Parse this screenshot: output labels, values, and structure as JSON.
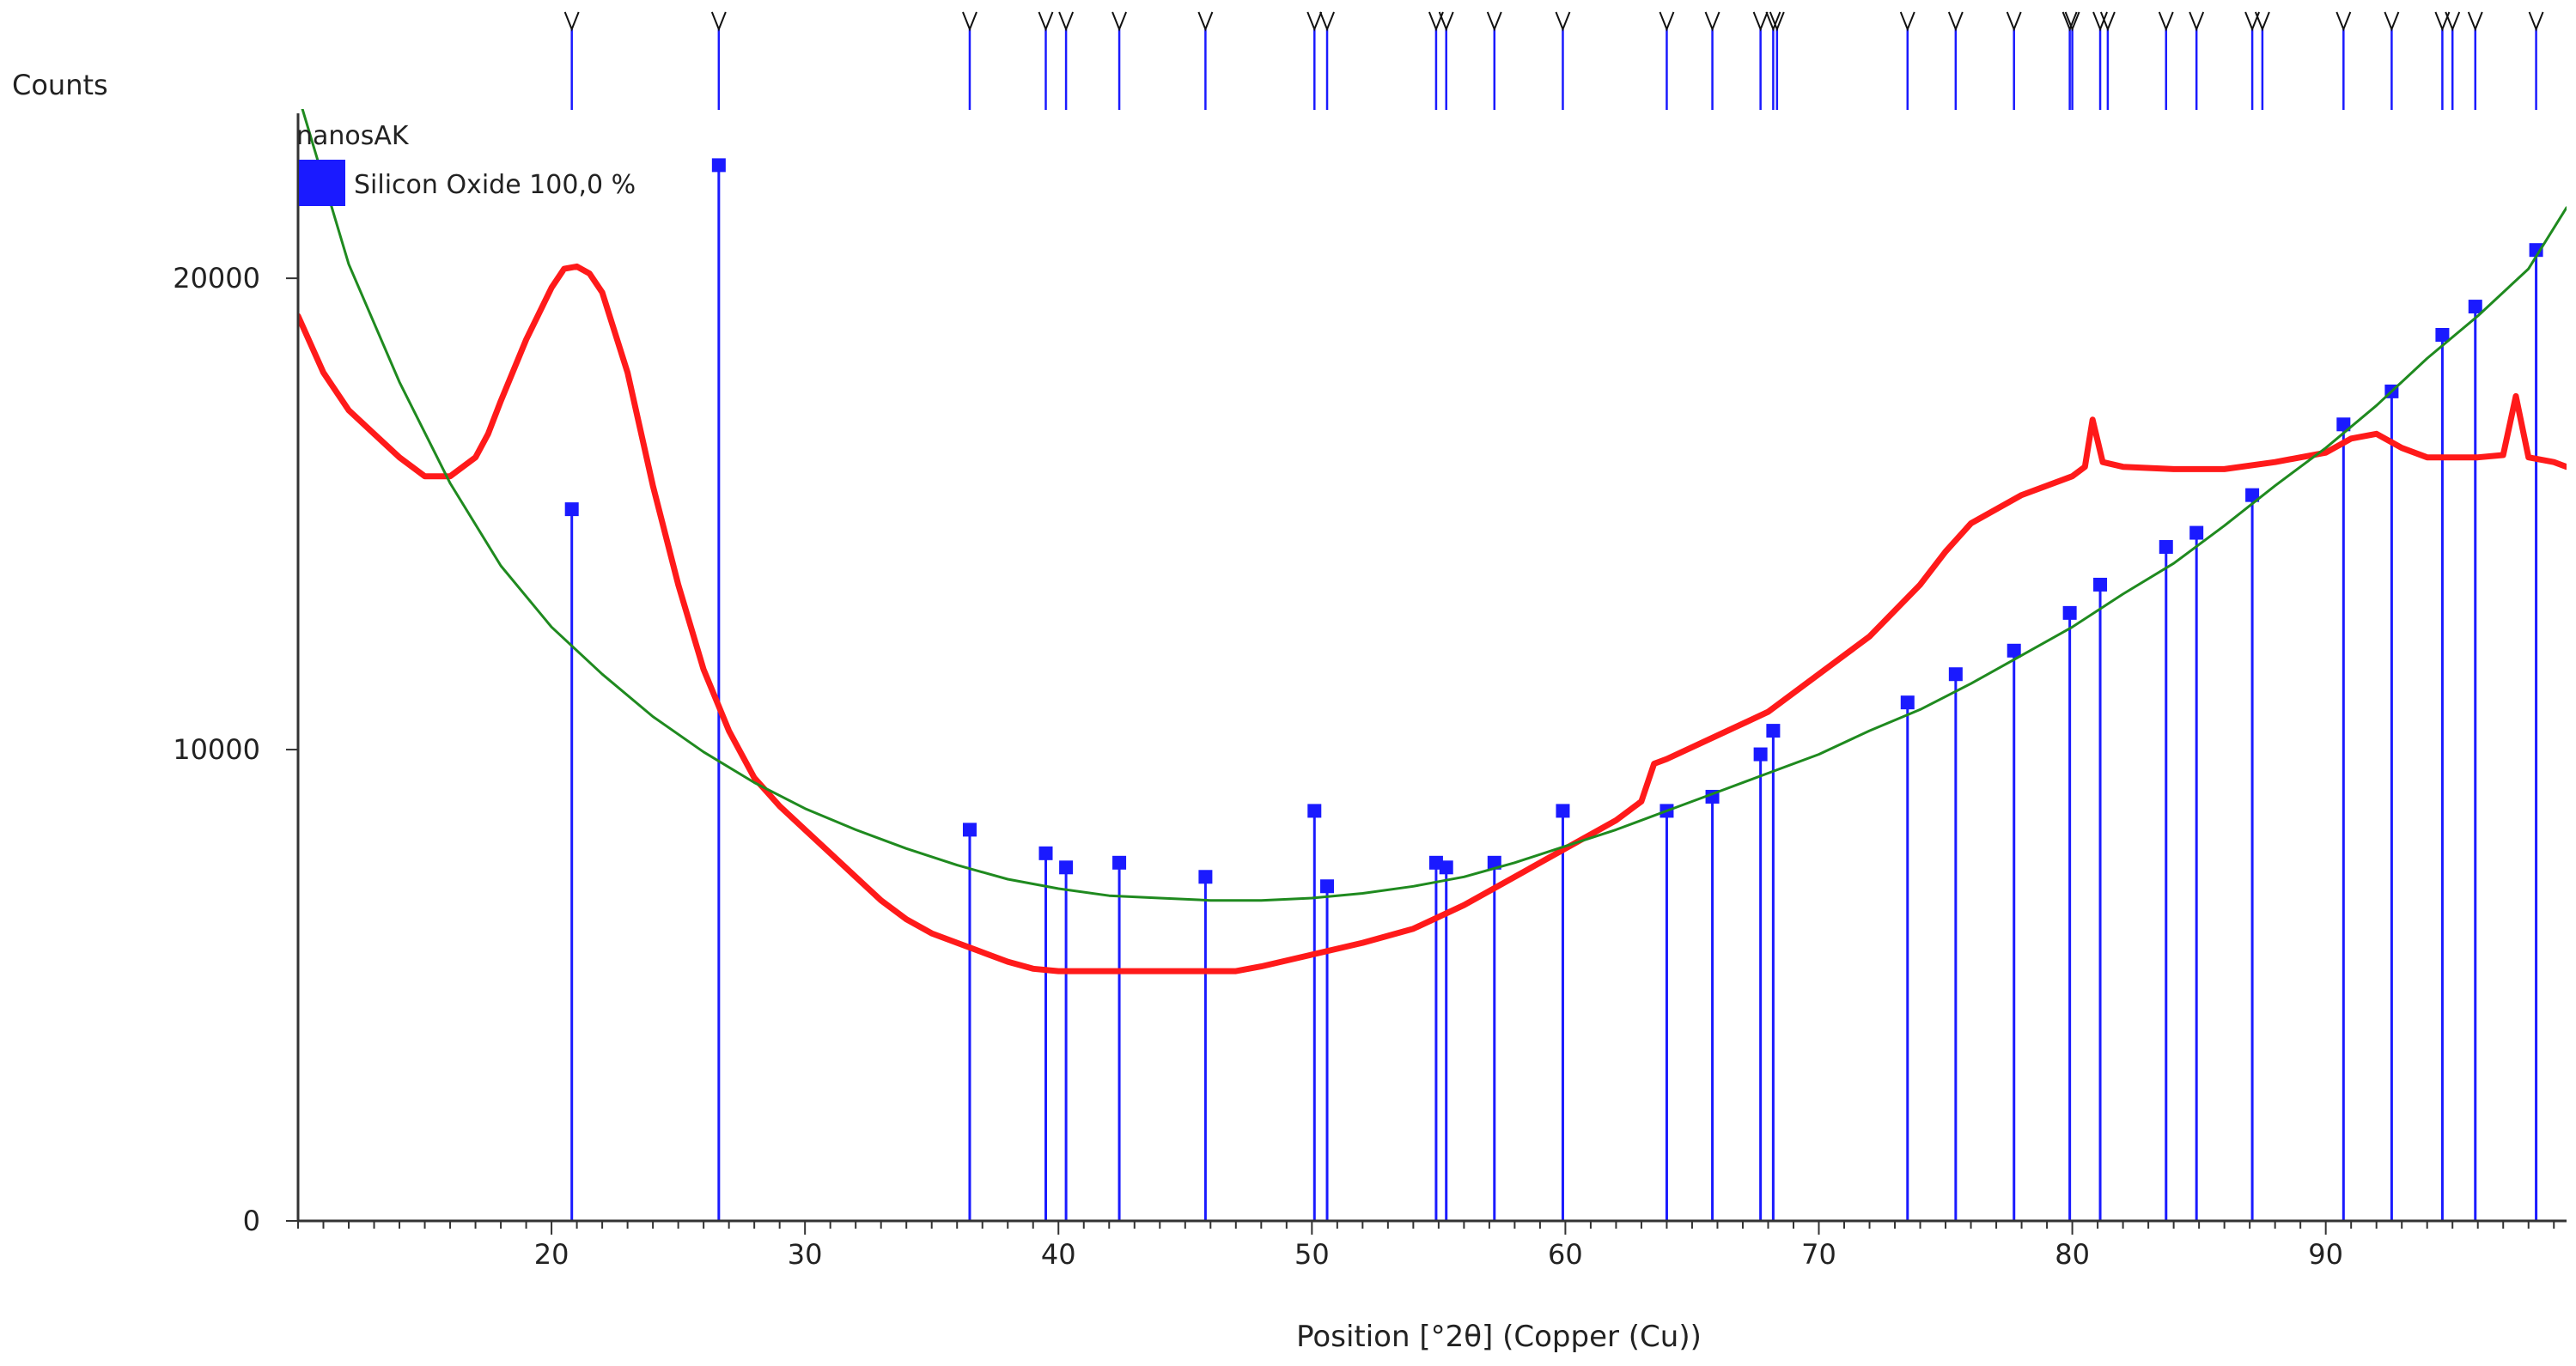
{
  "colors": {
    "measured": "#ff1a1a",
    "background_fit": "#1f8a1f",
    "reference": "#1a1aff",
    "axis": "#333333",
    "text": "#222222"
  },
  "chart_data": {
    "type": "line",
    "title": "",
    "xlabel": "Position [°2θ] (Copper (Cu))",
    "ylabel": "Counts",
    "xlim": [
      10,
      99.5
    ],
    "ylim": [
      0,
      23500
    ],
    "x_ticks": [
      20,
      30,
      40,
      50,
      60,
      70,
      80,
      90
    ],
    "y_ticks": [
      0,
      10000,
      20000
    ],
    "x_tick_labels": [
      "20",
      "30",
      "40",
      "50",
      "60",
      "70",
      "80",
      "90"
    ],
    "y_tick_labels": [
      "0",
      "10000",
      "20000"
    ],
    "x_minor_step": 1,
    "grid": false,
    "legend": {
      "position": "top-left",
      "sample_name": "nanosAK",
      "entries": [
        {
          "label": "Silicon Oxide 100,0 %",
          "color": "#1a1aff"
        }
      ]
    },
    "series": [
      {
        "role": "measured",
        "color": "#ff1a1a",
        "x": [
          10,
          11,
          12,
          13,
          14,
          15,
          16,
          17,
          17.5,
          18,
          19,
          20,
          20.5,
          21,
          21.5,
          22,
          23,
          24,
          25,
          26,
          27,
          28,
          29,
          30,
          31,
          32,
          33,
          34,
          35,
          36,
          37,
          38,
          39,
          40,
          41,
          42,
          43,
          44,
          45,
          46,
          47,
          48,
          50,
          52,
          54,
          56,
          58,
          60,
          62,
          63,
          63.5,
          64,
          66,
          68,
          70,
          72,
          74,
          75,
          76,
          78,
          80,
          80.5,
          80.8,
          81.2,
          82,
          84,
          86,
          88,
          90,
          91,
          92,
          93,
          94,
          95,
          96,
          97,
          97.5,
          98,
          99,
          99.5
        ],
        "y": [
          19200,
          18000,
          17200,
          16700,
          16200,
          15800,
          15800,
          16200,
          16700,
          17400,
          18700,
          19800,
          20200,
          20250,
          20100,
          19700,
          18000,
          15600,
          13500,
          11700,
          10400,
          9400,
          8800,
          8300,
          7800,
          7300,
          6800,
          6400,
          6100,
          5900,
          5700,
          5500,
          5350,
          5300,
          5300,
          5300,
          5300,
          5300,
          5300,
          5300,
          5300,
          5400,
          5650,
          5900,
          6200,
          6700,
          7300,
          7900,
          8500,
          8900,
          9700,
          9800,
          10300,
          10800,
          11600,
          12400,
          13500,
          14200,
          14800,
          15400,
          15800,
          16000,
          17000,
          16100,
          16000,
          15950,
          15950,
          16100,
          16300,
          16600,
          16700,
          16400,
          16200,
          16200,
          16200,
          16250,
          17500,
          16200,
          16100,
          16000
        ]
      },
      {
        "role": "background",
        "color": "#1f8a1f",
        "x": [
          10,
          12,
          14,
          16,
          18,
          20,
          22,
          24,
          26,
          28,
          30,
          32,
          34,
          36,
          38,
          40,
          42,
          44,
          46,
          48,
          50,
          52,
          54,
          56,
          58,
          60,
          62,
          64,
          66,
          68,
          70,
          72,
          74,
          76,
          78,
          80,
          82,
          84,
          86,
          88,
          90,
          92,
          94,
          96,
          98,
          99.5
        ],
        "y": [
          23900,
          20300,
          17800,
          15650,
          13900,
          12600,
          11600,
          10700,
          9950,
          9300,
          8750,
          8300,
          7900,
          7550,
          7250,
          7050,
          6900,
          6850,
          6800,
          6800,
          6850,
          6950,
          7100,
          7300,
          7600,
          7950,
          8300,
          8700,
          9100,
          9500,
          9900,
          10400,
          10850,
          11400,
          12000,
          12600,
          13300,
          13950,
          14750,
          15600,
          16400,
          17300,
          18300,
          19200,
          20200,
          21500
        ]
      }
    ],
    "reference_pattern": {
      "label": "Silicon Oxide 100,0 %",
      "peaks": [
        {
          "x": 20.8,
          "y": 15100
        },
        {
          "x": 26.6,
          "y": 22400
        },
        {
          "x": 36.5,
          "y": 8300
        },
        {
          "x": 39.5,
          "y": 7800
        },
        {
          "x": 40.3,
          "y": 7500
        },
        {
          "x": 42.4,
          "y": 7600
        },
        {
          "x": 45.8,
          "y": 7300
        },
        {
          "x": 50.1,
          "y": 8700
        },
        {
          "x": 50.6,
          "y": 7100
        },
        {
          "x": 54.9,
          "y": 7600
        },
        {
          "x": 55.3,
          "y": 7500
        },
        {
          "x": 57.2,
          "y": 7600
        },
        {
          "x": 59.9,
          "y": 8700
        },
        {
          "x": 64.0,
          "y": 8700
        },
        {
          "x": 65.8,
          "y": 9000
        },
        {
          "x": 67.7,
          "y": 9900
        },
        {
          "x": 68.2,
          "y": 10400
        },
        {
          "x": 73.5,
          "y": 11000
        },
        {
          "x": 75.4,
          "y": 11600
        },
        {
          "x": 77.7,
          "y": 12100
        },
        {
          "x": 79.9,
          "y": 12900
        },
        {
          "x": 81.1,
          "y": 13500
        },
        {
          "x": 83.7,
          "y": 14300
        },
        {
          "x": 84.9,
          "y": 14600
        },
        {
          "x": 87.1,
          "y": 15400
        },
        {
          "x": 90.7,
          "y": 16900
        },
        {
          "x": 92.6,
          "y": 17600
        },
        {
          "x": 94.6,
          "y": 18800
        },
        {
          "x": 95.9,
          "y": 19400
        },
        {
          "x": 98.3,
          "y": 20600
        }
      ],
      "top_marker_x": [
        20.8,
        26.6,
        36.5,
        39.5,
        40.3,
        42.4,
        45.8,
        50.1,
        50.6,
        54.9,
        55.3,
        57.2,
        59.9,
        64.0,
        65.8,
        67.7,
        68.2,
        68.35,
        73.5,
        75.4,
        77.7,
        79.9,
        80.0,
        81.1,
        81.4,
        83.7,
        84.9,
        87.1,
        87.5,
        90.7,
        92.6,
        94.6,
        95.0,
        95.9,
        98.3
      ]
    }
  }
}
